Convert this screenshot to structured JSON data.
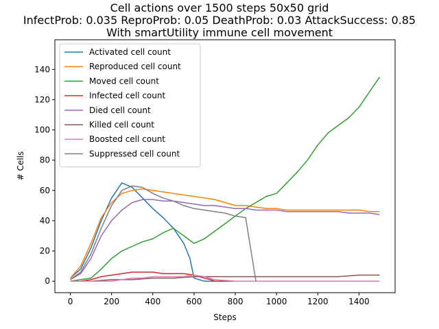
{
  "chart_data": {
    "type": "line",
    "title_lines": [
      "Cell actions over 1500 steps 50x50 grid",
      "InfectProb: 0.035 ReproProb: 0.05 DeathProb: 0.03 AttackSuccess: 0.85",
      "With smartUtility immune cell movement"
    ],
    "xlabel": "Steps",
    "ylabel": "# Cells",
    "xlim": [
      -75,
      1575
    ],
    "ylim": [
      -7.6,
      159.6
    ],
    "xticks": [
      0,
      200,
      400,
      600,
      800,
      1000,
      1200,
      1400
    ],
    "yticks": [
      0,
      20,
      40,
      60,
      80,
      100,
      120,
      140
    ],
    "grid": false,
    "legend_position": "top-left",
    "series": [
      {
        "name": "Activated cell count",
        "color": "#1f77b4",
        "x": [
          0,
          50,
          100,
          150,
          200,
          250,
          300,
          350,
          400,
          450,
          500,
          550,
          580,
          600,
          650,
          700,
          750,
          800,
          900,
          1000,
          1100,
          1200,
          1300,
          1400,
          1500
        ],
        "y": [
          2,
          8,
          22,
          40,
          55,
          65,
          62,
          55,
          48,
          42,
          35,
          25,
          15,
          2,
          0,
          0,
          0,
          0,
          0,
          0,
          0,
          0,
          0,
          0,
          0
        ]
      },
      {
        "name": "Reproduced cell count",
        "color": "#ff7f0e",
        "x": [
          0,
          50,
          100,
          150,
          200,
          250,
          300,
          350,
          400,
          450,
          500,
          550,
          600,
          650,
          700,
          750,
          800,
          850,
          900,
          950,
          1000,
          1050,
          1100,
          1150,
          1200,
          1250,
          1300,
          1350,
          1400,
          1450,
          1500
        ],
        "y": [
          2,
          10,
          25,
          42,
          52,
          58,
          60,
          61,
          60,
          59,
          58,
          57,
          56,
          55,
          54,
          52,
          50,
          50,
          49,
          48,
          48,
          47,
          47,
          47,
          47,
          47,
          47,
          47,
          47,
          46,
          46
        ]
      },
      {
        "name": "Moved cell count",
        "color": "#2ca02c",
        "x": [
          0,
          50,
          100,
          150,
          200,
          250,
          300,
          350,
          400,
          450,
          500,
          550,
          600,
          650,
          700,
          750,
          800,
          850,
          900,
          950,
          1000,
          1050,
          1100,
          1150,
          1200,
          1250,
          1300,
          1350,
          1400,
          1450,
          1500
        ],
        "y": [
          0,
          1,
          2,
          8,
          15,
          20,
          23,
          26,
          28,
          32,
          35,
          30,
          25,
          28,
          33,
          38,
          43,
          48,
          52,
          56,
          58,
          65,
          72,
          80,
          90,
          98,
          103,
          108,
          115,
          125,
          135
        ]
      },
      {
        "name": "Infected cell count",
        "color": "#d62728",
        "x": [
          0,
          50,
          100,
          150,
          200,
          250,
          300,
          350,
          400,
          450,
          500,
          550,
          600,
          650,
          680,
          700,
          800,
          1000,
          1200,
          1400,
          1500
        ],
        "y": [
          0,
          0,
          1,
          3,
          4,
          5,
          6,
          6,
          6,
          5,
          5,
          5,
          4,
          2,
          1,
          0,
          0,
          0,
          0,
          0,
          0
        ]
      },
      {
        "name": "Died cell count",
        "color": "#9467bd",
        "x": [
          0,
          50,
          100,
          150,
          200,
          250,
          300,
          350,
          400,
          450,
          500,
          550,
          600,
          650,
          700,
          750,
          800,
          850,
          900,
          950,
          1000,
          1050,
          1100,
          1150,
          1200,
          1250,
          1300,
          1350,
          1400,
          1450,
          1500
        ],
        "y": [
          1,
          5,
          15,
          30,
          40,
          47,
          52,
          54,
          54,
          53,
          53,
          52,
          51,
          50,
          50,
          49,
          48,
          48,
          47,
          47,
          47,
          46,
          46,
          46,
          46,
          46,
          46,
          45,
          45,
          45,
          44
        ]
      },
      {
        "name": "Killed cell count",
        "color": "#8c564b",
        "x": [
          0,
          100,
          200,
          300,
          400,
          500,
          600,
          650,
          700,
          750,
          800,
          900,
          1000,
          1100,
          1200,
          1300,
          1400,
          1500
        ],
        "y": [
          0,
          0,
          1,
          1,
          2,
          2,
          3,
          3,
          3,
          3,
          3,
          3,
          3,
          3,
          3,
          3,
          4,
          4
        ]
      },
      {
        "name": "Boosted cell count",
        "color": "#e377c2",
        "x": [
          0,
          100,
          150,
          200,
          250,
          300,
          350,
          400,
          450,
          500,
          550,
          600,
          650,
          700,
          800,
          1000,
          1200,
          1400,
          1500
        ],
        "y": [
          0,
          0,
          0,
          0,
          1,
          2,
          2,
          3,
          3,
          3,
          3,
          4,
          3,
          1,
          0,
          0,
          0,
          0,
          0
        ]
      },
      {
        "name": "Suppressed cell count",
        "color": "#7f7f7f",
        "x": [
          0,
          50,
          100,
          150,
          200,
          250,
          300,
          350,
          400,
          450,
          500,
          550,
          600,
          650,
          700,
          750,
          800,
          850,
          900
        ],
        "y": [
          1,
          6,
          18,
          35,
          50,
          60,
          63,
          62,
          58,
          55,
          53,
          50,
          48,
          47,
          46,
          45,
          43,
          42,
          0
        ]
      }
    ]
  }
}
